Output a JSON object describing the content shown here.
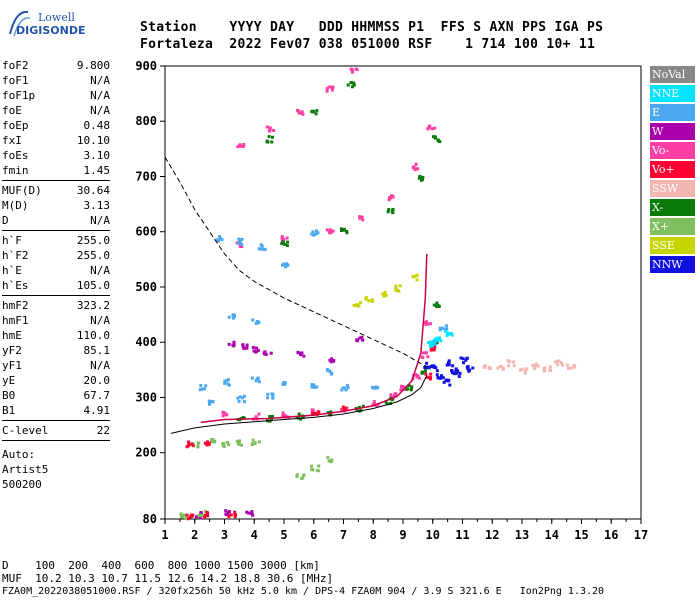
{
  "logo": {
    "line1": "Lowell",
    "line2": "DIGISONDE"
  },
  "header": {
    "line1": "Station    YYYY DAY   DDD HHMMSS P1  FFS S AXN PPS IGA PS",
    "line2": "Fortaleza  2022 Fev07 038 051000 RSF    1 714 100 10+ 11"
  },
  "params": [
    {
      "n": "foF2",
      "v": "9.800"
    },
    {
      "n": "foF1",
      "v": "N/A"
    },
    {
      "n": "foF1p",
      "v": "N/A"
    },
    {
      "n": "foE",
      "v": "N/A"
    },
    {
      "n": "foEp",
      "v": "0.48"
    },
    {
      "n": "fxI",
      "v": "10.10"
    },
    {
      "n": "foEs",
      "v": "3.10"
    },
    {
      "n": "fmin",
      "v": "1.45"
    },
    {
      "sep": true
    },
    {
      "n": "MUF(D)",
      "v": "30.64"
    },
    {
      "n": "M(D)",
      "v": "3.13"
    },
    {
      "n": "D",
      "v": "N/A"
    },
    {
      "sep": true
    },
    {
      "n": "h`F",
      "v": "255.0"
    },
    {
      "n": "h`F2",
      "v": "255.0"
    },
    {
      "n": "h`E",
      "v": "N/A"
    },
    {
      "n": "h`Es",
      "v": "105.0"
    },
    {
      "sep": true
    },
    {
      "n": "hmF2",
      "v": "323.2"
    },
    {
      "n": "hmF1",
      "v": "N/A"
    },
    {
      "n": "hmE",
      "v": "110.0"
    },
    {
      "n": "yF2",
      "v": "85.1"
    },
    {
      "n": "yF1",
      "v": "N/A"
    },
    {
      "n": "yE",
      "v": "20.0"
    },
    {
      "n": "B0",
      "v": "67.7"
    },
    {
      "n": "B1",
      "v": "4.91"
    },
    {
      "sep": true
    },
    {
      "n": "C-level",
      "v": "22"
    },
    {
      "sep": true
    }
  ],
  "auto": [
    "Auto:",
    "Artist5",
    "500200"
  ],
  "legend": [
    {
      "label": "NoVal",
      "color": "#888888"
    },
    {
      "label": "NNE",
      "color": "#00e5ff"
    },
    {
      "label": "E",
      "color": "#4aa8f0"
    },
    {
      "label": "W",
      "color": "#aa00aa"
    },
    {
      "label": "Vo-",
      "color": "#ff3ea5"
    },
    {
      "label": "Vo+",
      "color": "#ff0033"
    },
    {
      "label": "SSW",
      "color": "#f4b6b0"
    },
    {
      "label": "X-",
      "color": "#0a7a0a"
    },
    {
      "label": "X+",
      "color": "#7fbf5f"
    },
    {
      "label": "SSE",
      "color": "#c8d400"
    },
    {
      "label": "NNW",
      "color": "#1010e0"
    }
  ],
  "footer": {
    "line1": "D    100  200  400  600  800 1000 1500 3000 [km]",
    "line2": "MUF  10.2 10.3 10.7 11.5 12.6 14.2 18.8 30.6 [MHz]",
    "line3": "FZA0M_2022038051000.RSF / 320fx256h 50 kHz 5.0 km / DPS-4 FZA0M 904 / 3.9 S 321.6 E   Ion2Png 1.3.20"
  },
  "chart_data": {
    "type": "scatter",
    "xlim": [
      1,
      17
    ],
    "ylim": [
      80,
      900
    ],
    "xticks": [
      1,
      2,
      3,
      4,
      5,
      6,
      7,
      8,
      9,
      10,
      11,
      12,
      13,
      14,
      15,
      16,
      17
    ],
    "yticks": [
      80,
      200,
      300,
      400,
      500,
      600,
      700,
      800,
      900
    ],
    "series": [
      {
        "name": "Vo-",
        "color": "#ff3ea5",
        "points": [
          [
            3.0,
            272
          ],
          [
            4.0,
            268
          ],
          [
            5.0,
            270
          ],
          [
            6.0,
            276
          ],
          [
            7.0,
            282
          ],
          [
            8.0,
            292
          ],
          [
            8.6,
            305
          ],
          [
            9.0,
            318
          ],
          [
            9.4,
            340
          ],
          [
            9.7,
            380
          ],
          [
            9.8,
            440
          ],
          [
            3.5,
            580
          ],
          [
            5.0,
            590
          ],
          [
            6.5,
            602
          ],
          [
            7.5,
            625
          ],
          [
            8.5,
            665
          ],
          [
            9.4,
            720
          ],
          [
            9.9,
            790
          ],
          [
            3.5,
            760
          ],
          [
            4.5,
            790
          ],
          [
            5.5,
            820
          ],
          [
            6.5,
            860
          ],
          [
            7.3,
            895
          ]
        ]
      },
      {
        "name": "X-",
        "color": "#0a7a0a",
        "points": [
          [
            3.5,
            264
          ],
          [
            4.5,
            264
          ],
          [
            5.5,
            268
          ],
          [
            6.5,
            275
          ],
          [
            7.5,
            283
          ],
          [
            8.5,
            296
          ],
          [
            9.2,
            320
          ],
          [
            9.7,
            350
          ],
          [
            10.0,
            400
          ],
          [
            10.1,
            470
          ],
          [
            5.0,
            582
          ],
          [
            7.0,
            605
          ],
          [
            8.5,
            640
          ],
          [
            9.6,
            700
          ],
          [
            10.1,
            770
          ],
          [
            4.5,
            770
          ],
          [
            6.0,
            820
          ],
          [
            7.2,
            870
          ]
        ]
      },
      {
        "name": "E",
        "color": "#4aa8f0",
        "points": [
          [
            2.2,
            320
          ],
          [
            3.0,
            330
          ],
          [
            4.0,
            335
          ],
          [
            5.0,
            330
          ],
          [
            6.0,
            325
          ],
          [
            7.0,
            320
          ],
          [
            8.0,
            318
          ],
          [
            3.5,
            300
          ],
          [
            4.5,
            305
          ],
          [
            6.5,
            350
          ],
          [
            2.8,
            590
          ],
          [
            3.5,
            585
          ],
          [
            4.2,
            575
          ],
          [
            5.0,
            540
          ],
          [
            6.0,
            600
          ],
          [
            3.2,
            450
          ],
          [
            4.0,
            440
          ],
          [
            10.0,
            400
          ],
          [
            10.3,
            430
          ],
          [
            2.5,
            295
          ]
        ]
      },
      {
        "name": "NNW",
        "color": "#1010e0",
        "points": [
          [
            9.8,
            360
          ],
          [
            10.0,
            355
          ],
          [
            10.2,
            340
          ],
          [
            10.5,
            365
          ],
          [
            10.7,
            350
          ],
          [
            11.0,
            370
          ],
          [
            11.2,
            355
          ],
          [
            10.4,
            330
          ],
          [
            10.8,
            345
          ]
        ]
      },
      {
        "name": "SSW",
        "color": "#f4b6b0",
        "points": [
          [
            11.8,
            360
          ],
          [
            12.2,
            355
          ],
          [
            12.6,
            365
          ],
          [
            13.0,
            350
          ],
          [
            13.4,
            360
          ],
          [
            13.8,
            355
          ],
          [
            14.2,
            365
          ],
          [
            14.6,
            358
          ]
        ]
      },
      {
        "name": "W",
        "color": "#aa00aa",
        "points": [
          [
            3.2,
            400
          ],
          [
            3.6,
            395
          ],
          [
            4.0,
            390
          ],
          [
            4.4,
            385
          ],
          [
            5.5,
            380
          ],
          [
            6.5,
            370
          ],
          [
            7.5,
            410
          ],
          [
            2.1,
            90
          ],
          [
            3.0,
            95
          ],
          [
            3.8,
            92
          ]
        ]
      },
      {
        "name": "X+",
        "color": "#7fbf5f",
        "points": [
          [
            2.0,
            218
          ],
          [
            2.5,
            222
          ],
          [
            3.0,
            218
          ],
          [
            3.5,
            220
          ],
          [
            4.0,
            222
          ],
          [
            1.6,
            88
          ],
          [
            2.2,
            92
          ],
          [
            5.5,
            160
          ],
          [
            6.0,
            175
          ],
          [
            6.5,
            190
          ]
        ]
      },
      {
        "name": "Vo+",
        "color": "#ff0033",
        "points": [
          [
            1.8,
            88
          ],
          [
            2.4,
            90
          ],
          [
            3.2,
            92
          ],
          [
            1.8,
            218
          ],
          [
            2.4,
            220
          ],
          [
            9.8,
            340
          ],
          [
            10.0,
            390
          ],
          [
            6.0,
            275
          ],
          [
            7.0,
            285
          ]
        ]
      },
      {
        "name": "SSE",
        "color": "#c8d400",
        "points": [
          [
            7.4,
            470
          ],
          [
            7.8,
            480
          ],
          [
            8.3,
            490
          ],
          [
            8.8,
            500
          ],
          [
            9.4,
            520
          ]
        ]
      },
      {
        "name": "NNE",
        "color": "#00e5ff",
        "points": [
          [
            9.9,
            400
          ],
          [
            10.1,
            410
          ],
          [
            10.5,
            420
          ]
        ]
      }
    ],
    "profile_curve": [
      [
        1.2,
        235
      ],
      [
        2.0,
        245
      ],
      [
        3.0,
        252
      ],
      [
        4.0,
        256
      ],
      [
        5.0,
        260
      ],
      [
        6.0,
        264
      ],
      [
        7.0,
        270
      ],
      [
        8.0,
        280
      ],
      [
        8.8,
        292
      ],
      [
        9.3,
        305
      ],
      [
        9.6,
        318
      ],
      [
        9.8,
        340
      ]
    ],
    "trace_line": [
      [
        2.2,
        255
      ],
      [
        3.0,
        260
      ],
      [
        4.5,
        262
      ],
      [
        6.0,
        268
      ],
      [
        7.0,
        275
      ],
      [
        8.0,
        285
      ],
      [
        8.8,
        302
      ],
      [
        9.3,
        330
      ],
      [
        9.6,
        380
      ],
      [
        9.75,
        480
      ],
      [
        9.8,
        560
      ]
    ],
    "muf_curve": [
      [
        1.0,
        735
      ],
      [
        1.5,
        690
      ],
      [
        2.0,
        640
      ],
      [
        2.5,
        600
      ],
      [
        3.0,
        560
      ],
      [
        3.5,
        530
      ],
      [
        4.0,
        510
      ],
      [
        5.0,
        480
      ],
      [
        6.0,
        455
      ],
      [
        7.0,
        430
      ],
      [
        8.0,
        405
      ],
      [
        9.0,
        380
      ],
      [
        9.8,
        355
      ]
    ]
  }
}
